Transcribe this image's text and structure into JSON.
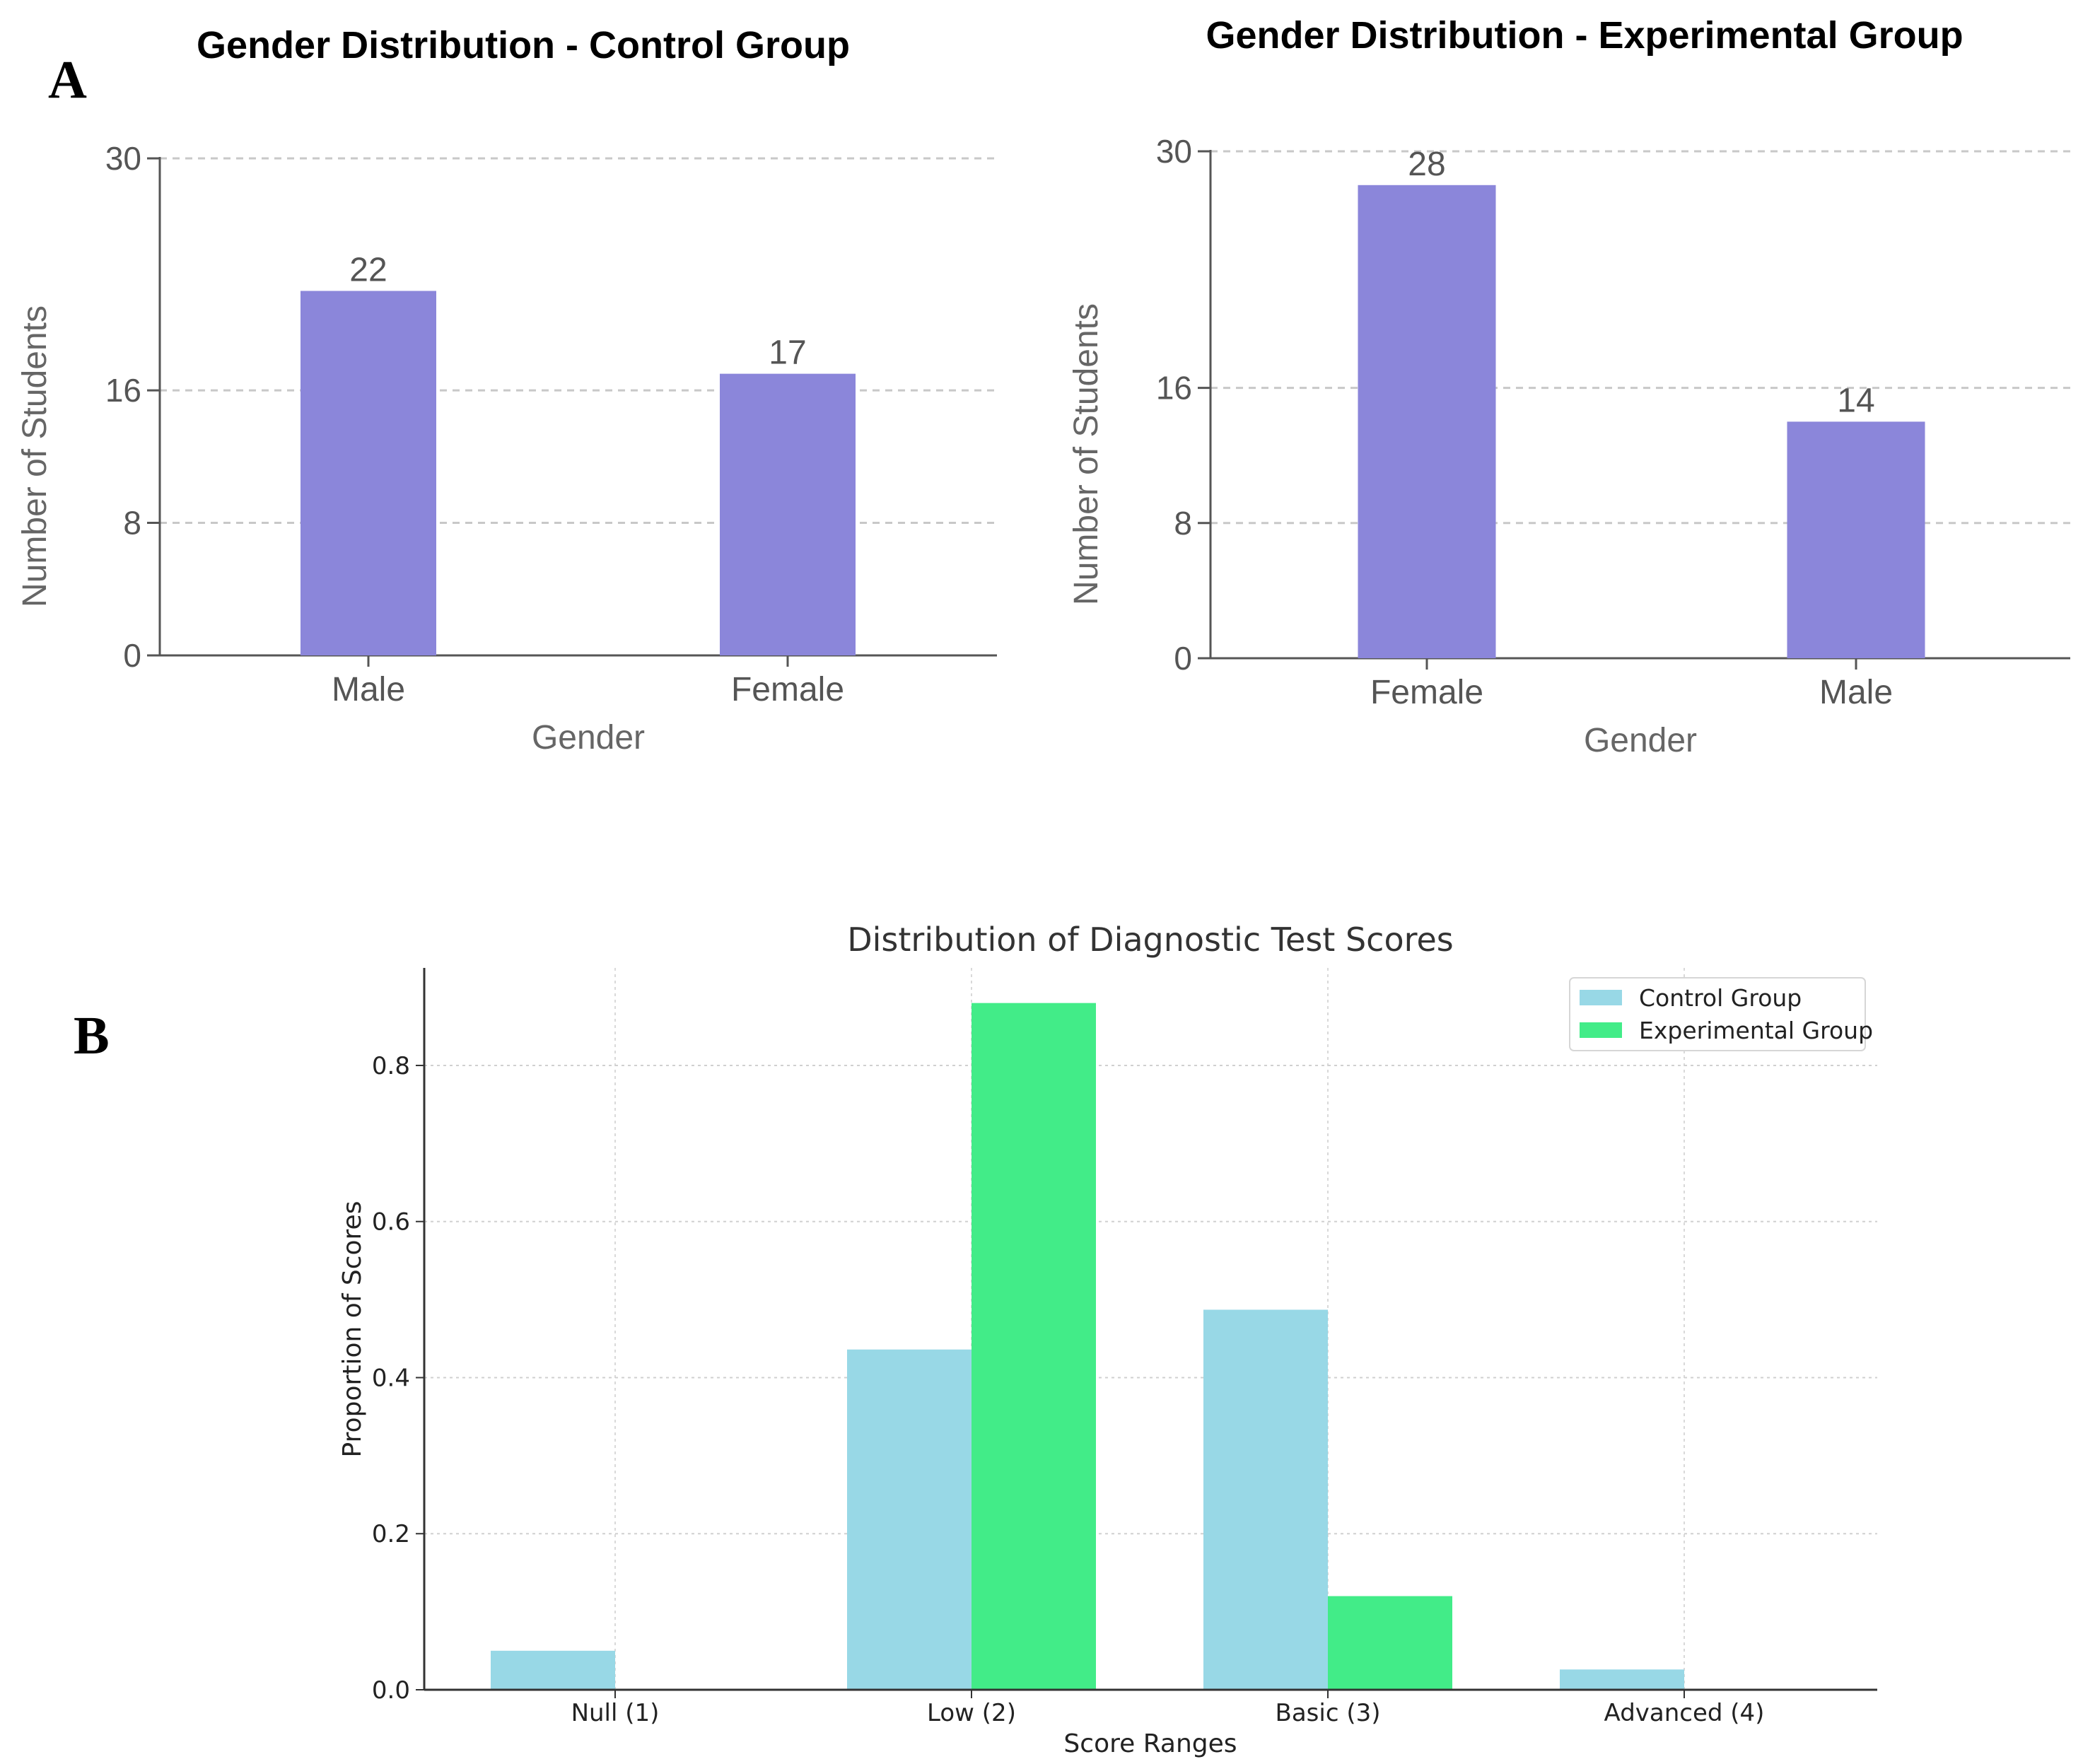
{
  "panel_labels": {
    "a": "A",
    "b": "B"
  },
  "colors": {
    "bar_purple": "#8b86da",
    "control": "#98d8e6",
    "experimental": "#42ec88"
  },
  "chart_data": [
    {
      "type": "bar",
      "title": "Gender Distribution - Control Group",
      "xlabel": "Gender",
      "ylabel": "Number of Students",
      "categories": [
        "Male",
        "Female"
      ],
      "values": [
        22,
        17
      ],
      "value_labels": [
        "22",
        "17"
      ],
      "yticks": [
        0,
        8,
        16,
        30
      ],
      "ytick_labels": [
        "0",
        "8",
        "16",
        "30"
      ],
      "ylim": [
        0,
        30
      ],
      "grid": "horizontal dashed"
    },
    {
      "type": "bar",
      "title": "Gender Distribution - Experimental Group",
      "xlabel": "Gender",
      "ylabel": "Number of Students",
      "categories": [
        "Female",
        "Male"
      ],
      "values": [
        28,
        14
      ],
      "value_labels": [
        "28",
        "14"
      ],
      "yticks": [
        0,
        8,
        16,
        30
      ],
      "ytick_labels": [
        "0",
        "8",
        "16",
        "30"
      ],
      "ylim": [
        0,
        30
      ],
      "grid": "horizontal dashed"
    },
    {
      "type": "bar",
      "title": "Distribution of Diagnostic Test Scores",
      "xlabel": "Score Ranges",
      "ylabel": "Proportion of Scores",
      "categories": [
        "Null (1)",
        "Low (2)",
        "Basic (3)",
        "Advanced (4)"
      ],
      "series": [
        {
          "name": "Control Group",
          "values": [
            0.05,
            0.436,
            0.487,
            0.026
          ]
        },
        {
          "name": "Experimental Group",
          "values": [
            0.0,
            0.88,
            0.12,
            0.0
          ]
        }
      ],
      "yticks": [
        0.0,
        0.2,
        0.4,
        0.6,
        0.8
      ],
      "ytick_labels": [
        "0.0",
        "0.2",
        "0.4",
        "0.6",
        "0.8"
      ],
      "ylim": [
        0,
        0.925
      ],
      "legend": "top-right",
      "grid": "both dotted"
    }
  ]
}
